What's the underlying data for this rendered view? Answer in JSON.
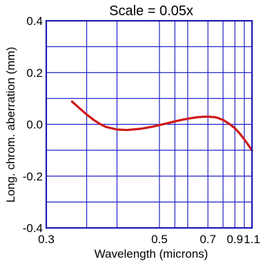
{
  "chart_data": {
    "type": "line",
    "title": "Scale = 0.05x",
    "xlabel": "Wavelength (microns)",
    "ylabel": "Long. chrom. aberration (mm)",
    "x_scale": "reciprocal",
    "xlim": [
      0.3,
      1.1
    ],
    "ylim": [
      -0.4,
      0.4
    ],
    "x_ticks": [
      0.3,
      0.5,
      0.7,
      0.9,
      1.1
    ],
    "x_tick_labels": [
      "0.3",
      "0.5",
      "0.7",
      "0.9",
      "1.1"
    ],
    "x_gridlines": [
      0.35,
      0.4,
      0.5,
      0.55,
      0.6,
      0.7,
      0.8,
      0.9,
      1.0,
      1.1
    ],
    "y_ticks": [
      -0.4,
      -0.2,
      0.0,
      0.2,
      0.4
    ],
    "y_tick_labels": [
      "-0.4",
      "-0.2",
      "0.0",
      "0.2",
      "0.4"
    ],
    "y_gridlines": [
      -0.3,
      -0.2,
      -0.1,
      0.0,
      0.1,
      0.2,
      0.3
    ],
    "grid": true,
    "colors": {
      "frame": "#1a1ab4",
      "grid": "#2020c8",
      "series": "#d01818",
      "text": "#000000"
    },
    "series": [
      {
        "x": [
          0.33,
          0.34,
          0.35,
          0.36,
          0.37,
          0.38,
          0.4,
          0.42,
          0.45,
          0.48,
          0.5,
          0.53,
          0.56,
          0.6,
          0.65,
          0.7,
          0.75,
          0.8,
          0.85,
          0.9,
          0.95,
          1.0,
          1.05,
          1.1
        ],
        "y": [
          0.088,
          0.062,
          0.038,
          0.018,
          0.002,
          -0.01,
          -0.02,
          -0.022,
          -0.017,
          -0.009,
          -0.003,
          0.006,
          0.014,
          0.022,
          0.028,
          0.03,
          0.027,
          0.017,
          0.002,
          -0.015,
          -0.036,
          -0.058,
          -0.08,
          -0.1
        ]
      }
    ]
  }
}
